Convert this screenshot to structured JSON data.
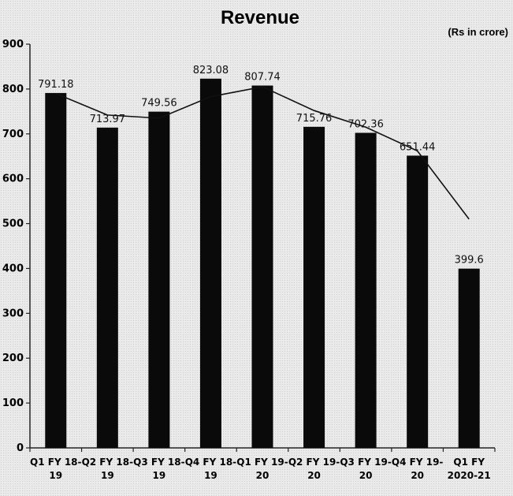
{
  "chart_data": {
    "type": "bar",
    "title": "Revenue",
    "unit_note": "(Rs in crore)",
    "categories": [
      [
        "Q1 FY 18-",
        "19"
      ],
      [
        "Q2 FY 18-",
        "19"
      ],
      [
        "Q3 FY 18-",
        "19"
      ],
      [
        "Q4 FY 18-",
        "19"
      ],
      [
        "Q1 FY 19-",
        "20"
      ],
      [
        "Q2 FY 19-",
        "20"
      ],
      [
        "Q3 FY 19-",
        "20"
      ],
      [
        "Q4 FY 19-",
        "20"
      ],
      [
        "Q1 FY",
        "2020-21"
      ]
    ],
    "values": [
      791.18,
      713.97,
      749.56,
      823.08,
      807.74,
      715.76,
      702.36,
      651.44,
      399.6
    ],
    "data_labels": [
      "791.18",
      "713.97",
      "749.56",
      "823.08",
      "807.74",
      "715.76",
      "702.36",
      "651.44",
      "399.6"
    ],
    "trendline": [
      790,
      742,
      735,
      783,
      805,
      752,
      715,
      662,
      510
    ],
    "ylim": [
      0,
      900
    ],
    "yticks": [
      0,
      100,
      200,
      300,
      400,
      500,
      600,
      700,
      800,
      900
    ],
    "grid": false,
    "legend": "none",
    "colors": {
      "bar": "#0a0a0a",
      "line": "#111111",
      "text": "#111111"
    }
  }
}
